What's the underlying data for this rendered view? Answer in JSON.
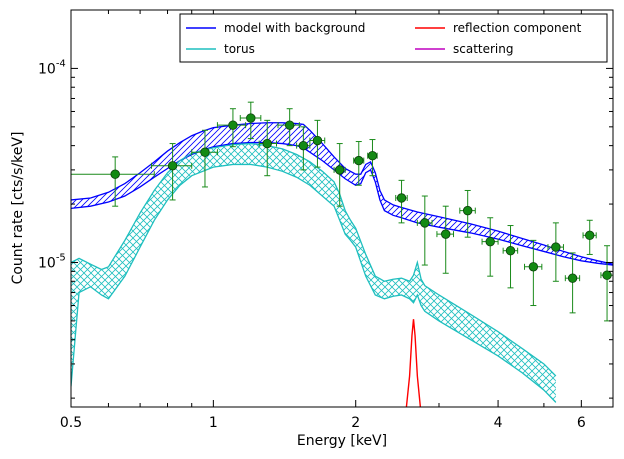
{
  "chart_data": {
    "type": "line",
    "xlabel": "Energy [keV]",
    "ylabel": "Count rate [cts/s/keV]",
    "x_scale": "log",
    "y_scale": "log",
    "xlim": [
      0.5,
      7.0
    ],
    "ylim": [
      1.8e-06,
      0.0002
    ],
    "x_ticks": [
      {
        "value": 0.5,
        "label": "0.5"
      },
      {
        "value": 1,
        "label": "1"
      },
      {
        "value": 2,
        "label": "2"
      },
      {
        "value": 4,
        "label": "4"
      },
      {
        "value": 6,
        "label": "6"
      }
    ],
    "y_ticks": [
      {
        "value": 1e-05,
        "base": "10",
        "exp": "-5"
      },
      {
        "value": 0.0001,
        "base": "10",
        "exp": "-4"
      }
    ],
    "grid": false,
    "legend": {
      "placement": "top-right",
      "columns": 2,
      "entries": [
        {
          "label": "model with background",
          "color": "#0000ff"
        },
        {
          "label": "reflection component",
          "color": "#ff0000"
        },
        {
          "label": "torus",
          "color": "#1fbfbf"
        },
        {
          "label": "scattering",
          "color": "#bf00bf"
        }
      ]
    },
    "series": [
      {
        "name": "model with background",
        "color": "#0000ff",
        "hatch": "diagonal",
        "x": [
          0.5,
          0.55,
          0.6,
          0.65,
          0.7,
          0.75,
          0.8,
          0.85,
          0.9,
          0.95,
          1.0,
          1.1,
          1.2,
          1.3,
          1.4,
          1.5,
          1.55,
          1.6,
          1.7,
          1.8,
          1.9,
          2.0,
          2.05,
          2.1,
          2.15,
          2.2,
          2.25,
          2.3,
          2.4,
          2.5,
          2.7,
          3.0,
          3.5,
          4.0,
          4.5,
          5.0,
          5.5,
          6.0,
          6.5,
          7.0
        ],
        "lower": [
          1.9e-05,
          1.95e-05,
          2.05e-05,
          2.2e-05,
          2.45e-05,
          2.75e-05,
          3.05e-05,
          3.35e-05,
          3.6e-05,
          3.8e-05,
          3.95e-05,
          4.1e-05,
          4.15e-05,
          4.15e-05,
          4.1e-05,
          4e-05,
          3.9e-05,
          3.7e-05,
          3.35e-05,
          3e-05,
          2.7e-05,
          2.5e-05,
          2.55e-05,
          2.9e-05,
          3e-05,
          2.6e-05,
          2.1e-05,
          1.85e-05,
          1.75e-05,
          1.7e-05,
          1.6e-05,
          1.52e-05,
          1.42e-05,
          1.32e-05,
          1.22e-05,
          1.14e-05,
          1.07e-05,
          1.02e-05,
          9.9e-06,
          9.7e-06
        ],
        "upper": [
          2.1e-05,
          2.15e-05,
          2.3e-05,
          2.55e-05,
          2.9e-05,
          3.3e-05,
          3.75e-05,
          4.15e-05,
          4.5e-05,
          4.75e-05,
          4.95e-05,
          5.1e-05,
          5.2e-05,
          5.25e-05,
          5.25e-05,
          5.2e-05,
          5.15e-05,
          4.8e-05,
          4.1e-05,
          3.5e-05,
          3.05e-05,
          2.85e-05,
          2.85e-05,
          3.2e-05,
          3.3e-05,
          2.9e-05,
          2.35e-05,
          2.1e-05,
          1.98e-05,
          1.92e-05,
          1.82e-05,
          1.72e-05,
          1.58e-05,
          1.45e-05,
          1.33e-05,
          1.23e-05,
          1.14e-05,
          1.07e-05,
          1.02e-05,
          9.8e-06
        ]
      },
      {
        "name": "torus",
        "color": "#1fbfbf",
        "hatch": "cross",
        "x": [
          0.5,
          0.52,
          0.55,
          0.58,
          0.6,
          0.65,
          0.7,
          0.75,
          0.8,
          0.85,
          0.9,
          1.0,
          1.1,
          1.2,
          1.3,
          1.4,
          1.5,
          1.6,
          1.7,
          1.8,
          1.85,
          1.9,
          1.95,
          2.0,
          2.1,
          2.2,
          2.3,
          2.4,
          2.5,
          2.6,
          2.65,
          2.7,
          2.75,
          2.8,
          3.0,
          3.5,
          4.0,
          4.5,
          5.0,
          5.3
        ],
        "lower": [
          2.3e-06,
          7e-06,
          7.5e-06,
          6.8e-06,
          6.5e-06,
          8.5e-06,
          1.2e-05,
          1.65e-05,
          2.1e-05,
          2.5e-05,
          2.8e-05,
          3.1e-05,
          3.2e-05,
          3.2e-05,
          3.1e-05,
          2.95e-05,
          2.75e-05,
          2.5e-05,
          2.2e-05,
          1.95e-05,
          1.65e-05,
          1.4e-05,
          1.3e-05,
          1.2e-05,
          8.5e-06,
          6.8e-06,
          6.5e-06,
          6.7e-06,
          6.8e-06,
          6.5e-06,
          6.2e-06,
          6.8e-06,
          6e-06,
          5.6e-06,
          5e-06,
          4e-06,
          3.3e-06,
          2.7e-06,
          2.2e-06,
          1.9e-06
        ],
        "upper": [
          1e-05,
          1.05e-05,
          9.8e-06,
          9.2e-06,
          9.5e-06,
          1.3e-05,
          1.8e-05,
          2.35e-05,
          2.9e-05,
          3.35e-05,
          3.65e-05,
          3.9e-05,
          4.05e-05,
          4.1e-05,
          4e-05,
          3.85e-05,
          3.6e-05,
          3.3e-05,
          2.95e-05,
          2.6e-05,
          2.25e-05,
          1.85e-05,
          1.65e-05,
          1.5e-05,
          1.1e-05,
          8.5e-06,
          8e-06,
          8.2e-06,
          8.3e-06,
          8e-06,
          8.6e-06,
          1e-05,
          8.2e-06,
          7.6e-06,
          6.8e-06,
          5.4e-06,
          4.4e-06,
          3.6e-06,
          3e-06,
          2.6e-06
        ]
      },
      {
        "name": "reflection component",
        "color": "#ff0000",
        "x": [
          2.56,
          2.6,
          2.63,
          2.65,
          2.67,
          2.7,
          2.74
        ],
        "y": [
          1.8e-06,
          2.6e-06,
          4.2e-06,
          5.1e-06,
          4.2e-06,
          2.6e-06,
          1.8e-06
        ]
      },
      {
        "name": "scattering",
        "color": "#bf00bf",
        "x": [],
        "y": []
      },
      {
        "name": "data",
        "type": "scatter",
        "color": "#1a8a1a",
        "points": [
          {
            "x": 0.62,
            "y": 2.85e-05,
            "xlo": 0.5,
            "xhi": 0.75,
            "ylo": 1.95e-05,
            "yhi": 3.5e-05
          },
          {
            "x": 0.82,
            "y": 3.15e-05,
            "xlo": 0.74,
            "xhi": 0.9,
            "ylo": 2.1e-05,
            "yhi": 4.1e-05
          },
          {
            "x": 0.96,
            "y": 3.7e-05,
            "xlo": 0.9,
            "xhi": 1.02,
            "ylo": 2.45e-05,
            "yhi": 4.8e-05
          },
          {
            "x": 1.1,
            "y": 5.1e-05,
            "xlo": 1.02,
            "xhi": 1.17,
            "ylo": 3.95e-05,
            "yhi": 6.2e-05
          },
          {
            "x": 1.2,
            "y": 5.55e-05,
            "xlo": 1.14,
            "xhi": 1.26,
            "ylo": 4.35e-05,
            "yhi": 6.7e-05
          },
          {
            "x": 1.3,
            "y": 4.1e-05,
            "xlo": 1.25,
            "xhi": 1.36,
            "ylo": 2.8e-05,
            "yhi": 5.4e-05
          },
          {
            "x": 1.45,
            "y": 5.1e-05,
            "xlo": 1.37,
            "xhi": 1.52,
            "ylo": 4e-05,
            "yhi": 6.2e-05
          },
          {
            "x": 1.55,
            "y": 4e-05,
            "xlo": 1.5,
            "xhi": 1.6,
            "ylo": 3e-05,
            "yhi": 5e-05
          },
          {
            "x": 1.66,
            "y": 4.25e-05,
            "xlo": 1.6,
            "xhi": 1.72,
            "ylo": 3.1e-05,
            "yhi": 5.4e-05
          },
          {
            "x": 1.85,
            "y": 3e-05,
            "xlo": 1.8,
            "xhi": 1.9,
            "ylo": 1.95e-05,
            "yhi": 4.1e-05
          },
          {
            "x": 2.03,
            "y": 3.35e-05,
            "xlo": 1.98,
            "xhi": 2.08,
            "ylo": 2.5e-05,
            "yhi": 4.2e-05
          },
          {
            "x": 2.17,
            "y": 3.55e-05,
            "xlo": 2.12,
            "xhi": 2.22,
            "ylo": 2.8e-05,
            "yhi": 4.3e-05
          },
          {
            "x": 2.5,
            "y": 2.15e-05,
            "xlo": 2.43,
            "xhi": 2.57,
            "ylo": 1.6e-05,
            "yhi": 2.65e-05
          },
          {
            "x": 2.8,
            "y": 1.6e-05,
            "xlo": 2.7,
            "xhi": 2.9,
            "ylo": 9.7e-06,
            "yhi": 2.2e-05
          },
          {
            "x": 3.1,
            "y": 1.4e-05,
            "xlo": 2.97,
            "xhi": 3.22,
            "ylo": 8.8e-06,
            "yhi": 1.95e-05
          },
          {
            "x": 3.45,
            "y": 1.85e-05,
            "xlo": 3.32,
            "xhi": 3.58,
            "ylo": 1.35e-05,
            "yhi": 2.35e-05
          },
          {
            "x": 3.85,
            "y": 1.28e-05,
            "xlo": 3.7,
            "xhi": 4.0,
            "ylo": 8.5e-06,
            "yhi": 1.7e-05
          },
          {
            "x": 4.25,
            "y": 1.15e-05,
            "xlo": 4.1,
            "xhi": 4.4,
            "ylo": 7.4e-06,
            "yhi": 1.55e-05
          },
          {
            "x": 4.75,
            "y": 9.5e-06,
            "xlo": 4.55,
            "xhi": 4.95,
            "ylo": 6e-06,
            "yhi": 1.3e-05
          },
          {
            "x": 5.3,
            "y": 1.2e-05,
            "xlo": 5.1,
            "xhi": 5.5,
            "ylo": 8e-06,
            "yhi": 1.6e-05
          },
          {
            "x": 5.75,
            "y": 8.3e-06,
            "xlo": 5.55,
            "xhi": 5.95,
            "ylo": 5.5e-06,
            "yhi": 1.12e-05
          },
          {
            "x": 6.25,
            "y": 1.38e-05,
            "xlo": 6.05,
            "xhi": 6.45,
            "ylo": 1.1e-05,
            "yhi": 1.65e-05
          },
          {
            "x": 6.8,
            "y": 8.6e-06,
            "xlo": 6.6,
            "xhi": 7.0,
            "ylo": 5e-06,
            "yhi": 1.22e-05
          }
        ]
      }
    ]
  }
}
